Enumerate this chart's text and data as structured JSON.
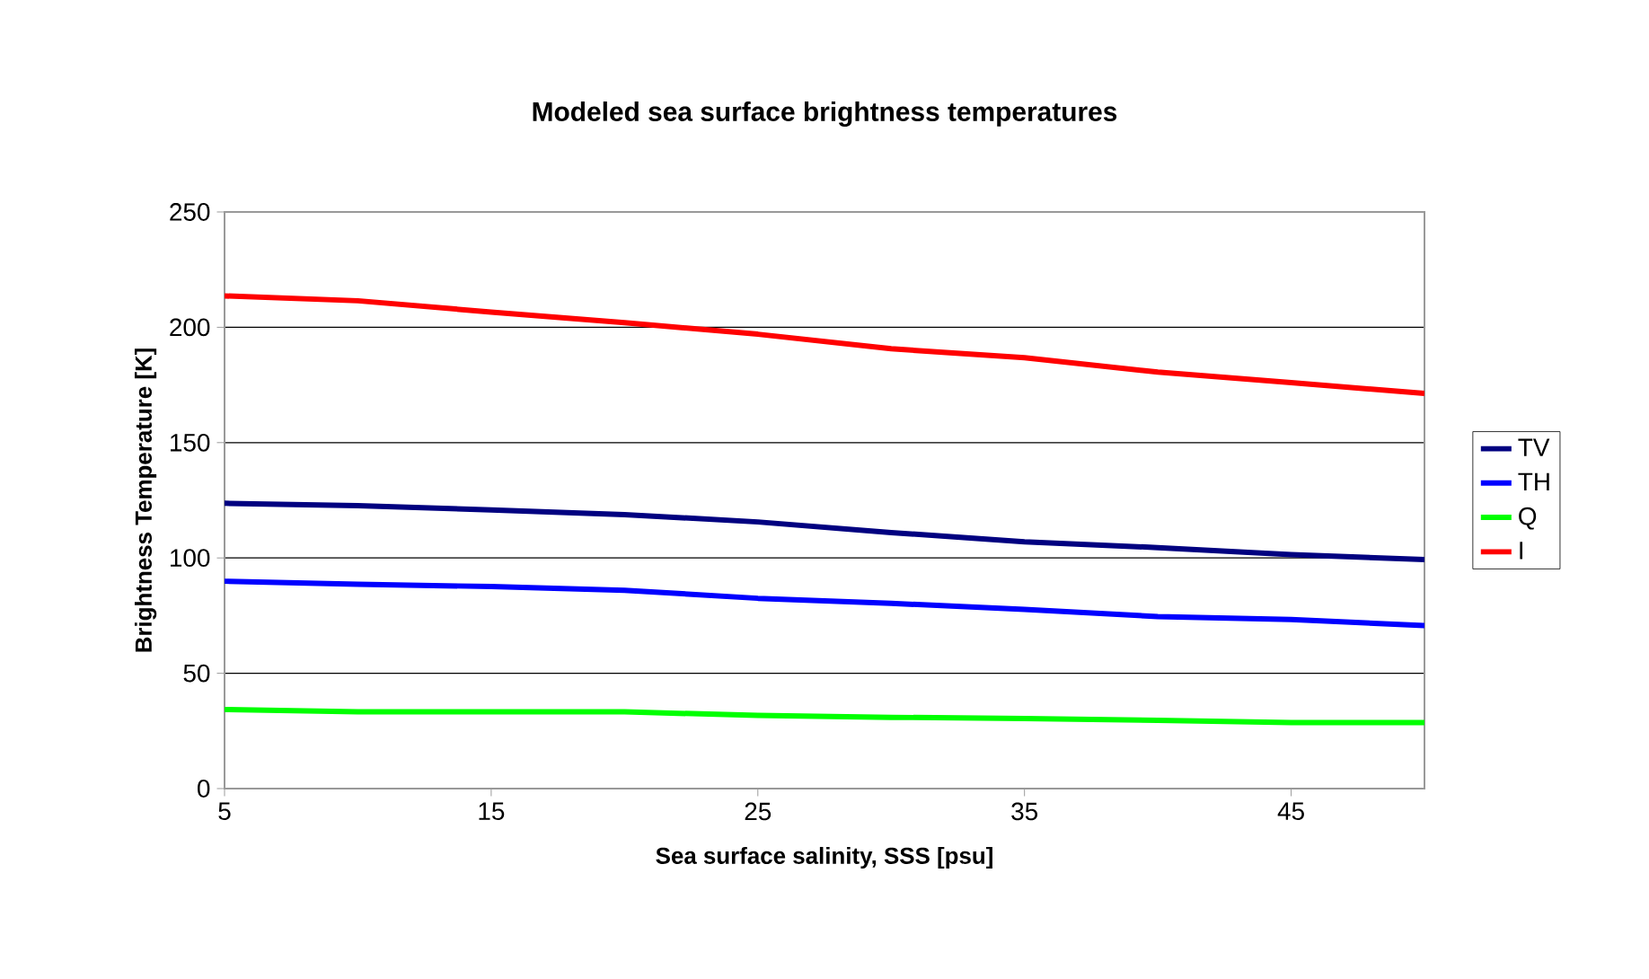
{
  "chart_data": {
    "type": "line",
    "title": "Modeled sea surface brightness temperatures",
    "xlabel": "Sea surface salinity, SSS [psu]",
    "ylabel": "Brightness Temperature [K]",
    "x": [
      5,
      10,
      15,
      20,
      25,
      30,
      35,
      40,
      45,
      50
    ],
    "series": [
      {
        "name": "TV",
        "color": "#000080",
        "values": [
          123.7,
          122.7,
          120.8,
          118.8,
          115.6,
          111,
          107,
          104.5,
          101.4,
          99.3
        ]
      },
      {
        "name": "TH",
        "color": "#0000ff",
        "values": [
          89.9,
          88.6,
          87.6,
          86,
          82.5,
          80.3,
          77.7,
          74.6,
          73.3,
          70.7
        ]
      },
      {
        "name": "Q",
        "color": "#00ff00",
        "values": [
          34.3,
          33.3,
          33.3,
          33.3,
          31.7,
          30.9,
          30.4,
          29.6,
          28.6,
          28.6
        ]
      },
      {
        "name": "I",
        "color": "#ff0000",
        "values": [
          213.6,
          211.5,
          206.6,
          202,
          197,
          190.7,
          186.8,
          180.6,
          176,
          171.3
        ]
      }
    ],
    "xlim": [
      5,
      50
    ],
    "ylim": [
      0,
      250
    ],
    "xticks": [
      5,
      15,
      25,
      35,
      45
    ],
    "yticks": [
      0,
      50,
      100,
      150,
      200,
      250
    ],
    "grid": "y",
    "legend": "right"
  }
}
